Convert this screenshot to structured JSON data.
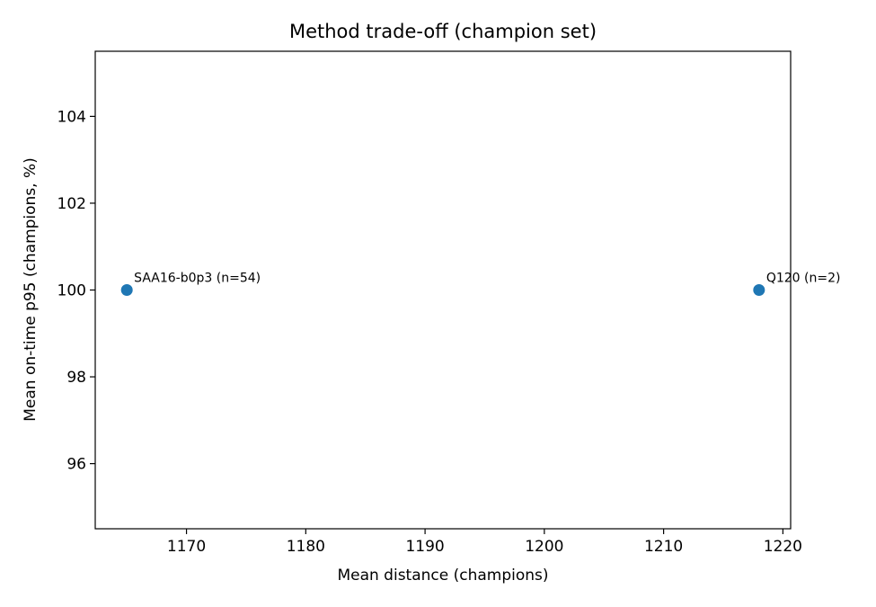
{
  "chart_data": {
    "type": "scatter",
    "title": "Method trade-off (champion set)",
    "xlabel": "Mean distance (champions)",
    "ylabel": "Mean on-time p95 (champions, %)",
    "xlim": [
      1162.35,
      1220.65
    ],
    "ylim": [
      94.5,
      105.5
    ],
    "xticks": [
      1170,
      1180,
      1190,
      1200,
      1210,
      1220
    ],
    "yticks": [
      96,
      98,
      100,
      102,
      104
    ],
    "grid": false,
    "color": "#1f77b4",
    "points": [
      {
        "x": 1165,
        "y": 100,
        "label": "SAA16-b0p3 (n=54)"
      },
      {
        "x": 1218,
        "y": 100,
        "label": "Q120 (n=2)"
      }
    ]
  }
}
